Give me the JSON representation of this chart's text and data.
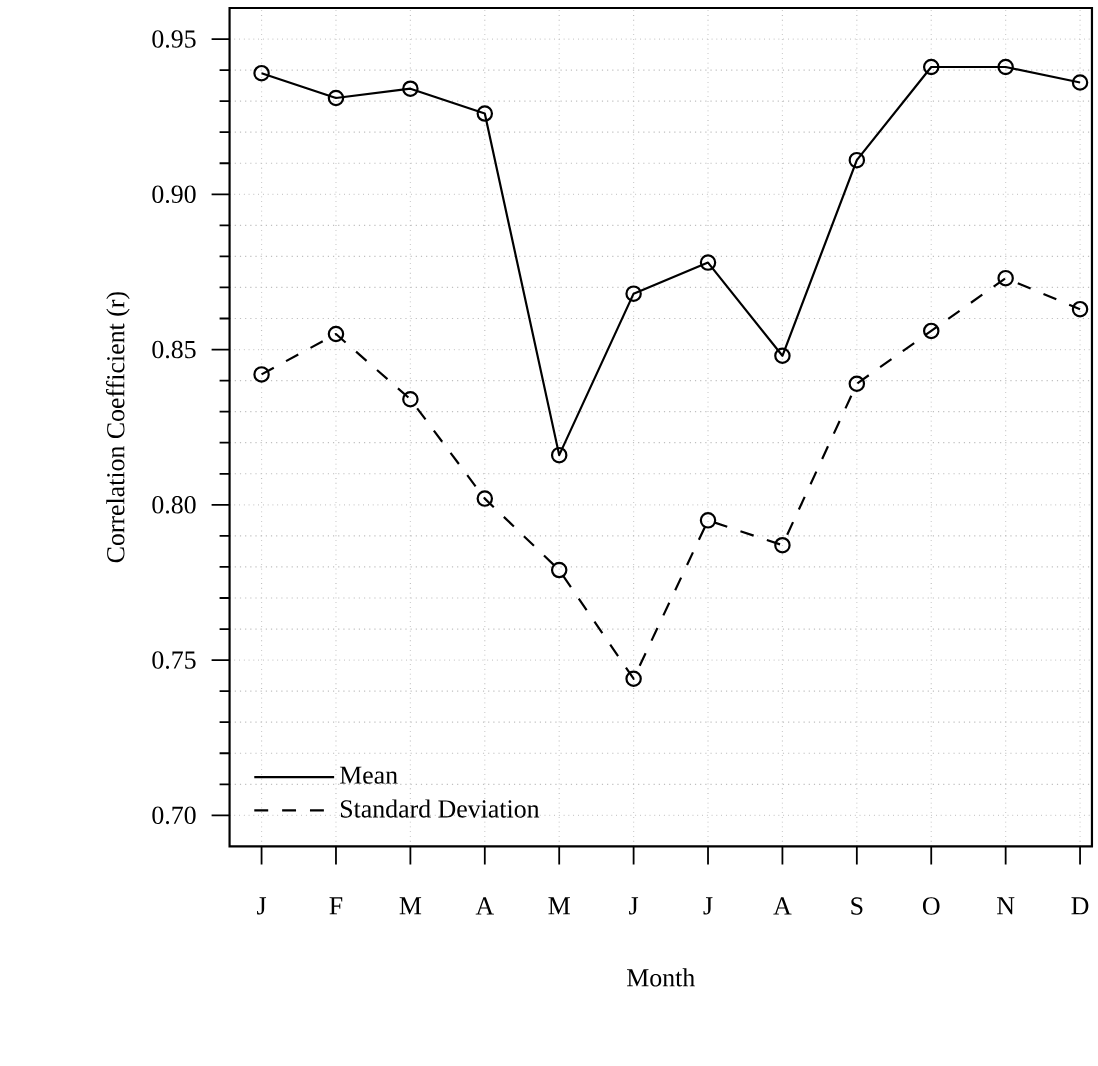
{
  "chart_data": {
    "type": "line",
    "xlabel": "Month",
    "ylabel": "Correlation Coefficient (r)",
    "categories": [
      "J",
      "F",
      "M",
      "A",
      "M",
      "J",
      "J",
      "A",
      "S",
      "O",
      "N",
      "D"
    ],
    "series": [
      {
        "name": "Mean",
        "color": "#000000",
        "line_style": "solid",
        "values": [
          0.939,
          0.931,
          0.934,
          0.926,
          0.816,
          0.868,
          0.878,
          0.848,
          0.911,
          0.941,
          0.941,
          0.936
        ]
      },
      {
        "name": "Standard Deviation",
        "color": "#000000",
        "line_style": "dashed",
        "values": [
          0.842,
          0.855,
          0.834,
          0.802,
          0.779,
          0.744,
          0.795,
          0.787,
          0.839,
          0.856,
          0.873,
          0.863
        ]
      }
    ],
    "ylim": [
      0.69,
      0.96
    ],
    "yticks": [
      {
        "value": 0.7,
        "label": "0.70"
      },
      {
        "value": 0.71,
        "label": null
      },
      {
        "value": 0.72,
        "label": null
      },
      {
        "value": 0.73,
        "label": null
      },
      {
        "value": 0.74,
        "label": null
      },
      {
        "value": 0.75,
        "label": "0.75"
      },
      {
        "value": 0.76,
        "label": null
      },
      {
        "value": 0.77,
        "label": null
      },
      {
        "value": 0.78,
        "label": null
      },
      {
        "value": 0.79,
        "label": null
      },
      {
        "value": 0.8,
        "label": "0.80"
      },
      {
        "value": 0.81,
        "label": null
      },
      {
        "value": 0.82,
        "label": null
      },
      {
        "value": 0.83,
        "label": null
      },
      {
        "value": 0.84,
        "label": null
      },
      0.85,
      {
        "value": 0.86,
        "label": null
      },
      {
        "value": 0.87,
        "label": null
      },
      {
        "value": 0.88,
        "label": null
      },
      {
        "value": 0.89,
        "label": null
      },
      {
        "value": 0.9,
        "label": "0.90"
      },
      {
        "value": 0.91,
        "label": null
      },
      {
        "value": 0.92,
        "label": null
      },
      {
        "value": 0.93,
        "label": null
      },
      {
        "value": 0.94,
        "label": null
      },
      0.95
    ],
    "grid": true,
    "legend": "bottom left",
    "marker": "circle"
  }
}
